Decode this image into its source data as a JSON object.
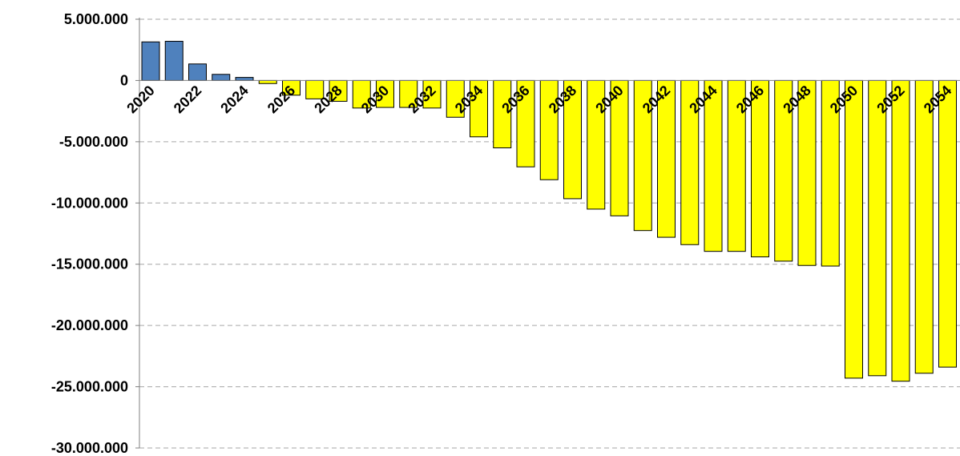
{
  "chart_data": {
    "type": "bar",
    "title": "",
    "xlabel": "",
    "ylabel": "",
    "ylim": [
      -30000000,
      5000000
    ],
    "y_ticks": [
      5000000,
      0,
      -5000000,
      -10000000,
      -15000000,
      -20000000,
      -25000000,
      -30000000
    ],
    "y_tick_labels": [
      "5.000.000",
      "0",
      "-5.000.000",
      "-10.000.000",
      "-15.000.000",
      "-20.000.000",
      "-25.000.000",
      "-30.000.000"
    ],
    "x_tick_labels": [
      "2020",
      "2022",
      "2024",
      "2026",
      "2028",
      "2030",
      "2032",
      "2034",
      "2036",
      "2038",
      "2040",
      "2042",
      "2044",
      "2046",
      "2048",
      "2050",
      "2052",
      "2054"
    ],
    "grid": "horizontal dashed",
    "legend": "none",
    "colors": {
      "positive": "#4f81bd",
      "negative": "#ffff00",
      "bar_outline": "#000000",
      "grid": "#a6a6a6",
      "axis": "#808080"
    },
    "categories": [
      "2020",
      "2021",
      "2022",
      "2023",
      "2024",
      "2025",
      "2026",
      "2027",
      "2028",
      "2029",
      "2030",
      "2031",
      "2032",
      "2033",
      "2034",
      "2035",
      "2036",
      "2037",
      "2038",
      "2039",
      "2040",
      "2041",
      "2042",
      "2043",
      "2044",
      "2045",
      "2046",
      "2047",
      "2048",
      "2049",
      "2050",
      "2051",
      "2052",
      "2053",
      "2054"
    ],
    "values": [
      3150000,
      3200000,
      1350000,
      500000,
      250000,
      -250000,
      -1200000,
      -1500000,
      -1700000,
      -2250000,
      -2200000,
      -2200000,
      -2250000,
      -3000000,
      -4600000,
      -5500000,
      -7050000,
      -8100000,
      -9650000,
      -10500000,
      -11050000,
      -12250000,
      -12800000,
      -13400000,
      -13950000,
      -13950000,
      -14400000,
      -14750000,
      -15100000,
      -15150000,
      -24300000,
      -24100000,
      -24550000,
      -23900000,
      -23400000
    ]
  }
}
